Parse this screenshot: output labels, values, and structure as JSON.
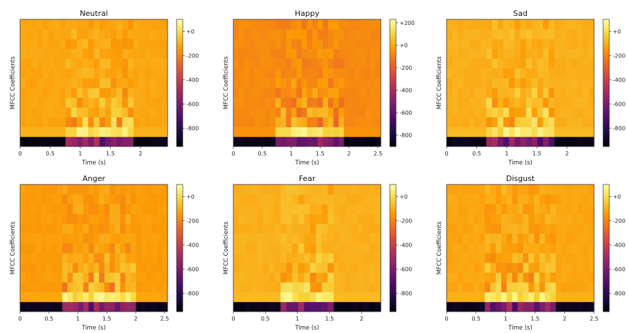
{
  "figure": {
    "colormap": "inferno",
    "colormap_stops": [
      "#000004",
      "#1b0c41",
      "#4a0c6b",
      "#781c6d",
      "#a52c60",
      "#cf4446",
      "#ed6925",
      "#fb9b06",
      "#f7d13d",
      "#fcffa4"
    ]
  },
  "chart_data": [
    {
      "type": "heatmap",
      "title": "Neutral",
      "xlabel": "Time (s)",
      "ylabel": "MFCC Coefficients",
      "xlim": [
        0,
        2.45
      ],
      "xticks": [
        0,
        0.5,
        1,
        1.5,
        2
      ],
      "xtick_labels": [
        "0",
        "0.5",
        "1",
        "1.5",
        "2"
      ],
      "rows": 13,
      "cols": 26,
      "active_range": [
        0.75,
        1.85
      ],
      "base": 0.8,
      "clim": [
        -950,
        100
      ],
      "cticks": [
        0,
        -200,
        -400,
        -600,
        -800
      ],
      "ctick_labels": [
        "+0",
        "-200",
        "-400",
        "-600",
        "-800"
      ]
    },
    {
      "type": "heatmap",
      "title": "Happy",
      "xlabel": "Time (s)",
      "ylabel": "MFCC Coefficients",
      "xlim": [
        0,
        2.55
      ],
      "xticks": [
        0,
        0.5,
        1,
        1.5,
        2,
        2.5
      ],
      "xtick_labels": [
        "0",
        "0.5",
        "1",
        "1.5",
        "2",
        "2.5"
      ],
      "rows": 13,
      "cols": 28,
      "active_range": [
        0.7,
        1.9
      ],
      "base": 0.74,
      "clim": [
        -900,
        230
      ],
      "cticks": [
        200,
        0,
        -200,
        -400,
        -600,
        -800
      ],
      "ctick_labels": [
        "+200",
        "+0",
        "-200",
        "-400",
        "-600",
        "-800"
      ]
    },
    {
      "type": "heatmap",
      "title": "Sad",
      "xlabel": "Time (s)",
      "ylabel": "MFCC Coefficients",
      "xlim": [
        0,
        2.45
      ],
      "xticks": [
        0,
        0.5,
        1,
        1.5,
        2
      ],
      "xtick_labels": [
        "0",
        "0.5",
        "1",
        "1.5",
        "2"
      ],
      "rows": 13,
      "cols": 26,
      "active_range": [
        0.7,
        1.75
      ],
      "base": 0.82,
      "clim": [
        -950,
        100
      ],
      "cticks": [
        0,
        -200,
        -400,
        -600,
        -800
      ],
      "ctick_labels": [
        "+0",
        "-200",
        "-400",
        "-600",
        "-800"
      ]
    },
    {
      "type": "heatmap",
      "title": "Anger",
      "xlabel": "Time (s)",
      "ylabel": "MFCC Coefficients",
      "xlim": [
        0,
        2.55
      ],
      "xticks": [
        0,
        0.5,
        1,
        1.5,
        2,
        2.5
      ],
      "xtick_labels": [
        "0",
        "0.5",
        "1",
        "1.5",
        "2",
        "2.5"
      ],
      "rows": 13,
      "cols": 28,
      "active_range": [
        0.7,
        2.0
      ],
      "base": 0.78,
      "clim": [
        -950,
        100
      ],
      "cticks": [
        0,
        -200,
        -400,
        -600,
        -800
      ],
      "ctick_labels": [
        "+0",
        "-200",
        "-400",
        "-600",
        "-800"
      ]
    },
    {
      "type": "heatmap",
      "title": "Fear",
      "xlabel": "Time (s)",
      "ylabel": "MFCC Coefficients",
      "xlim": [
        0,
        2.3
      ],
      "xticks": [
        0,
        0.5,
        1,
        1.5,
        2
      ],
      "xtick_labels": [
        "0",
        "0.5",
        "1",
        "1.5",
        "2"
      ],
      "rows": 13,
      "cols": 25,
      "active_range": [
        0.75,
        1.55
      ],
      "base": 0.82,
      "clim": [
        -950,
        100
      ],
      "cticks": [
        0,
        -200,
        -400,
        -600,
        -800
      ],
      "ctick_labels": [
        "+0",
        "-200",
        "-400",
        "-600",
        "-800"
      ]
    },
    {
      "type": "heatmap",
      "title": "Disgust",
      "xlabel": "Time (s)",
      "ylabel": "MFCC Coefficients",
      "xlim": [
        0,
        2.5
      ],
      "xticks": [
        0,
        0.5,
        1,
        1.5,
        2,
        2.5
      ],
      "xtick_labels": [
        "0",
        "0.5",
        "1",
        "1.5",
        "2",
        "2.5"
      ],
      "rows": 13,
      "cols": 27,
      "active_range": [
        0.65,
        1.85
      ],
      "base": 0.8,
      "clim": [
        -950,
        100
      ],
      "cticks": [
        0,
        -200,
        -400,
        -600,
        -800
      ],
      "ctick_labels": [
        "+0",
        "-200",
        "-400",
        "-600",
        "-800"
      ]
    }
  ]
}
